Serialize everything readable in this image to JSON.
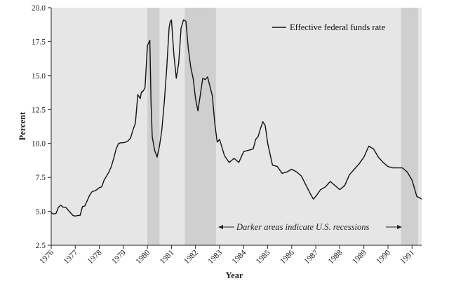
{
  "chart_data": {
    "type": "line",
    "title": "",
    "xlabel": "Year",
    "ylabel": "Percent",
    "xlim": [
      1976.0,
      1991.4
    ],
    "ylim": [
      2.5,
      20.0
    ],
    "grid": false,
    "legend": "top-right",
    "y_ticks": [
      "2.5",
      "5.0",
      "7.5",
      "10.0",
      "12.5",
      "15.0",
      "17.5",
      "20.0"
    ],
    "x_ticks": [
      "1976",
      "1977",
      "1978",
      "1979",
      "1980",
      "1981",
      "1982",
      "1983",
      "1984",
      "1985",
      "1986",
      "1987",
      "1988",
      "1989",
      "1990",
      "1991"
    ],
    "recessions": [
      {
        "start": 1980.0,
        "end": 1980.5
      },
      {
        "start": 1981.55,
        "end": 1982.85
      },
      {
        "start": 1990.55,
        "end": 1991.25
      }
    ],
    "annotation": "Darker areas indicate U.S. recessions",
    "series": [
      {
        "name": "Effective federal funds rate",
        "x": [
          1976.0,
          1976.1,
          1976.2,
          1976.3,
          1976.4,
          1976.5,
          1976.6,
          1976.7,
          1976.8,
          1976.9,
          1977.0,
          1977.1,
          1977.2,
          1977.3,
          1977.4,
          1977.5,
          1977.6,
          1977.7,
          1977.8,
          1977.9,
          1978.0,
          1978.1,
          1978.2,
          1978.3,
          1978.4,
          1978.5,
          1978.6,
          1978.7,
          1978.8,
          1978.9,
          1979.0,
          1979.1,
          1979.2,
          1979.3,
          1979.4,
          1979.5,
          1979.6,
          1979.7,
          1979.75,
          1979.8,
          1979.9,
          1980.0,
          1980.1,
          1980.15,
          1980.2,
          1980.3,
          1980.4,
          1980.5,
          1980.6,
          1980.7,
          1980.8,
          1980.9,
          1980.95,
          1981.0,
          1981.1,
          1981.2,
          1981.3,
          1981.4,
          1981.5,
          1981.6,
          1981.7,
          1981.8,
          1981.9,
          1982.0,
          1982.1,
          1982.2,
          1982.3,
          1982.4,
          1982.5,
          1982.6,
          1982.7,
          1982.8,
          1982.9,
          1983.0,
          1983.2,
          1983.4,
          1983.6,
          1983.8,
          1984.0,
          1984.2,
          1984.4,
          1984.5,
          1984.6,
          1984.7,
          1984.8,
          1984.9,
          1985.0,
          1985.2,
          1985.4,
          1985.6,
          1985.8,
          1986.0,
          1986.2,
          1986.4,
          1986.6,
          1986.8,
          1986.9,
          1987.0,
          1987.2,
          1987.4,
          1987.6,
          1987.8,
          1988.0,
          1988.2,
          1988.4,
          1988.6,
          1988.8,
          1989.0,
          1989.2,
          1989.4,
          1989.6,
          1989.8,
          1990.0,
          1990.2,
          1990.4,
          1990.6,
          1990.8,
          1991.0,
          1991.2,
          1991.4
        ],
        "values": [
          4.9,
          4.8,
          4.85,
          5.3,
          5.45,
          5.3,
          5.3,
          5.1,
          4.9,
          4.7,
          4.65,
          4.7,
          4.7,
          5.35,
          5.4,
          5.8,
          6.2,
          6.45,
          6.5,
          6.6,
          6.75,
          6.8,
          7.3,
          7.6,
          7.9,
          8.3,
          8.9,
          9.6,
          10.0,
          10.05,
          10.05,
          10.1,
          10.2,
          10.4,
          11.0,
          11.5,
          13.6,
          13.3,
          13.8,
          13.8,
          14.1,
          17.2,
          17.6,
          13.0,
          10.5,
          9.5,
          9.0,
          9.8,
          11.0,
          13.0,
          15.5,
          18.5,
          19.0,
          19.1,
          16.5,
          14.8,
          15.9,
          18.5,
          19.1,
          19.0,
          17.0,
          15.6,
          14.8,
          13.3,
          12.4,
          13.6,
          14.8,
          14.7,
          14.9,
          14.2,
          13.5,
          11.5,
          10.1,
          10.3,
          9.1,
          8.6,
          8.9,
          8.6,
          9.4,
          9.5,
          9.6,
          10.3,
          10.5,
          11.1,
          11.6,
          11.3,
          10.0,
          8.4,
          8.3,
          7.8,
          7.9,
          8.1,
          7.9,
          7.6,
          6.9,
          6.2,
          5.9,
          6.1,
          6.6,
          6.8,
          7.2,
          6.9,
          6.6,
          6.9,
          7.7,
          8.1,
          8.5,
          9.0,
          9.8,
          9.6,
          9.0,
          8.6,
          8.3,
          8.2,
          8.2,
          8.2,
          7.9,
          7.3,
          6.1,
          5.9
        ]
      }
    ]
  }
}
